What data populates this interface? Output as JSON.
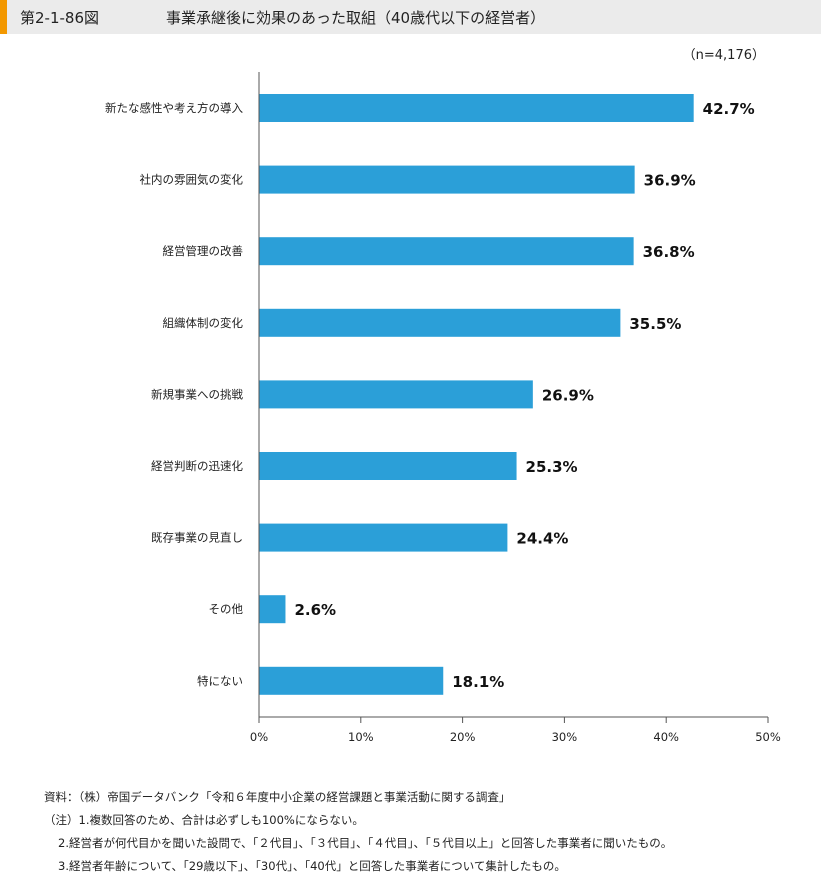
{
  "header": {
    "figure_number": "第2-1-86図",
    "title": "事業承継後に効果のあった取組（40歳代以下の経営者）"
  },
  "colors": {
    "bar": "#2b9fd8",
    "accent": "#f39800",
    "header_bg": "#ebebeb",
    "axis": "#555555"
  },
  "chart_data": {
    "type": "bar",
    "orientation": "horizontal",
    "n_label": "（n=4,176）",
    "categories": [
      "新たな感性や考え方の導入",
      "社内の雰囲気の変化",
      "経営管理の改善",
      "組織体制の変化",
      "新規事業への挑戦",
      "経営判断の迅速化",
      "既存事業の見直し",
      "その他",
      "特にない"
    ],
    "values": [
      42.7,
      36.9,
      36.8,
      35.5,
      26.9,
      25.3,
      24.4,
      2.6,
      18.1
    ],
    "value_labels": [
      "42.7%",
      "36.9%",
      "36.8%",
      "35.5%",
      "26.9%",
      "25.3%",
      "24.4%",
      "2.6%",
      "18.1%"
    ],
    "xlim": [
      0,
      50
    ],
    "xticks": [
      0,
      10,
      20,
      30,
      40,
      50
    ],
    "xtick_labels": [
      "0%",
      "10%",
      "20%",
      "30%",
      "40%",
      "50%"
    ],
    "grid": false,
    "legend": "none"
  },
  "notes": {
    "source": "資料：（株）帝国データバンク「令和６年度中小企業の経営課題と事業活動に関する調査」",
    "note1": "（注）1.複数回答のため、合計は必ずしも100%にならない。",
    "note2": "2.経営者が何代目かを聞いた設問で、「２代目」、「３代目」、「４代目」、「５代目以上」と回答した事業者に聞いたもの。",
    "note3": "3.経営者年齢について、「29歳以下」、「30代」、「40代」と回答した事業者について集計したもの。"
  }
}
